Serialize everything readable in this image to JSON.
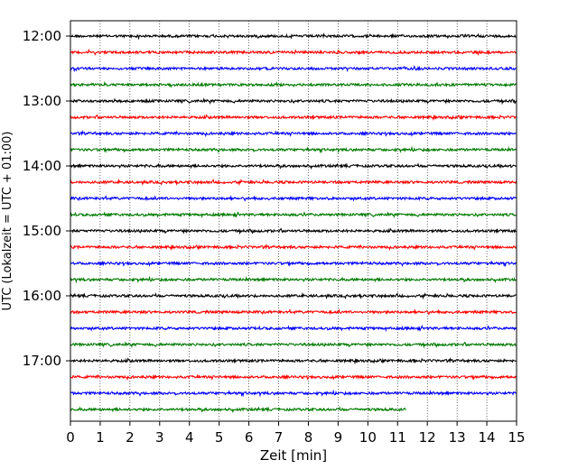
{
  "chart_data": {
    "type": "line",
    "title": "",
    "xlabel": "Zeit  [min]",
    "ylabel": "UTC (Lokalzeit = UTC + 01:00)",
    "xlim": [
      0,
      15
    ],
    "x_ticks": [
      "0",
      "1",
      "2",
      "3",
      "4",
      "5",
      "6",
      "7",
      "8",
      "9",
      "10",
      "11",
      "12",
      "13",
      "14",
      "15"
    ],
    "y_tick_labels": [
      "12:00",
      "13:00",
      "14:00",
      "15:00",
      "16:00",
      "17:00"
    ],
    "grid": "vertical dotted",
    "trace_interval_min": 15,
    "colors_cycle": [
      "#000000",
      "#ff0000",
      "#0000ff",
      "#007a00"
    ],
    "series": [
      {
        "start": "12:00",
        "color": "#000000",
        "x_end": 15
      },
      {
        "start": "12:15",
        "color": "#ff0000",
        "x_end": 15
      },
      {
        "start": "12:30",
        "color": "#0000ff",
        "x_end": 15
      },
      {
        "start": "12:45",
        "color": "#007a00",
        "x_end": 15
      },
      {
        "start": "13:00",
        "color": "#000000",
        "x_end": 15
      },
      {
        "start": "13:15",
        "color": "#ff0000",
        "x_end": 15
      },
      {
        "start": "13:30",
        "color": "#0000ff",
        "x_end": 15
      },
      {
        "start": "13:45",
        "color": "#007a00",
        "x_end": 15
      },
      {
        "start": "14:00",
        "color": "#000000",
        "x_end": 15
      },
      {
        "start": "14:15",
        "color": "#ff0000",
        "x_end": 15
      },
      {
        "start": "14:30",
        "color": "#0000ff",
        "x_end": 15
      },
      {
        "start": "14:45",
        "color": "#007a00",
        "x_end": 15
      },
      {
        "start": "15:00",
        "color": "#000000",
        "x_end": 15
      },
      {
        "start": "15:15",
        "color": "#ff0000",
        "x_end": 15
      },
      {
        "start": "15:30",
        "color": "#0000ff",
        "x_end": 15
      },
      {
        "start": "15:45",
        "color": "#007a00",
        "x_end": 15
      },
      {
        "start": "16:00",
        "color": "#000000",
        "x_end": 15
      },
      {
        "start": "16:15",
        "color": "#ff0000",
        "x_end": 15
      },
      {
        "start": "16:30",
        "color": "#0000ff",
        "x_end": 15
      },
      {
        "start": "16:45",
        "color": "#007a00",
        "x_end": 15
      },
      {
        "start": "17:00",
        "color": "#000000",
        "x_end": 15
      },
      {
        "start": "17:15",
        "color": "#ff0000",
        "x_end": 15
      },
      {
        "start": "17:30",
        "color": "#0000ff",
        "x_end": 15
      },
      {
        "start": "17:45",
        "color": "#007a00",
        "x_end": 11.3
      }
    ]
  }
}
